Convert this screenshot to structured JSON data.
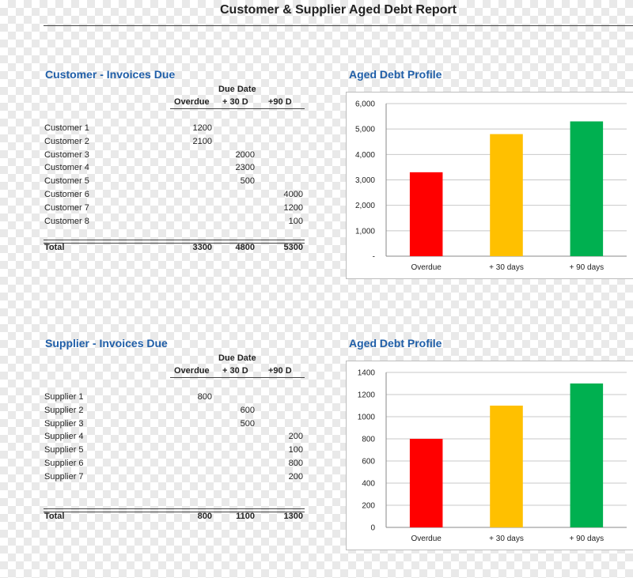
{
  "report_title": "Customer & Supplier Aged Debt Report",
  "customer": {
    "section_title": "Customer - Invoices Due",
    "due_date_label": "Due Date",
    "columns": [
      "Overdue",
      "+ 30 D",
      "+90 D"
    ],
    "rows": [
      {
        "label": "Customer 1",
        "values": [
          "1200",
          "",
          ""
        ]
      },
      {
        "label": "Customer 2",
        "values": [
          "2100",
          "",
          ""
        ]
      },
      {
        "label": "Customer 3",
        "values": [
          "",
          "2000",
          ""
        ]
      },
      {
        "label": "Customer 4",
        "values": [
          "",
          "2300",
          ""
        ]
      },
      {
        "label": "Customer 5",
        "values": [
          "",
          "500",
          ""
        ]
      },
      {
        "label": "Customer 6",
        "values": [
          "",
          "",
          "4000"
        ]
      },
      {
        "label": "Customer 7",
        "values": [
          "",
          "",
          "1200"
        ]
      },
      {
        "label": "Customer 8",
        "values": [
          "",
          "",
          "100"
        ]
      }
    ],
    "total_label": "Total",
    "totals": [
      "3300",
      "4800",
      "5300"
    ]
  },
  "supplier": {
    "section_title": "Supplier - Invoices Due",
    "due_date_label": "Due Date",
    "columns": [
      "Overdue",
      "+ 30 D",
      "+90 D"
    ],
    "rows": [
      {
        "label": "Supplier 1",
        "values": [
          "800",
          "",
          ""
        ]
      },
      {
        "label": "Supplier 2",
        "values": [
          "",
          "600",
          ""
        ]
      },
      {
        "label": "Supplier 3",
        "values": [
          "",
          "500",
          ""
        ]
      },
      {
        "label": "Supplier 4",
        "values": [
          "",
          "",
          "200"
        ]
      },
      {
        "label": "Supplier 5",
        "values": [
          "",
          "",
          "100"
        ]
      },
      {
        "label": "Supplier 6",
        "values": [
          "",
          "",
          "800"
        ]
      },
      {
        "label": "Supplier 7",
        "values": [
          "",
          "",
          "200"
        ]
      }
    ],
    "total_label": "Total",
    "totals": [
      "800",
      "1100",
      "1300"
    ]
  },
  "chart_titles": [
    "Aged Debt Profile",
    "Aged Debt Profile"
  ],
  "chart_data": [
    {
      "type": "bar",
      "title": "",
      "categories": [
        "Overdue",
        "+ 30 days",
        "+ 90 days"
      ],
      "values": [
        3300,
        4800,
        5300
      ],
      "colors": [
        "#ff0000",
        "#ffc000",
        "#00b050"
      ],
      "ylim": [
        0,
        6000
      ],
      "yticks": [
        0,
        1000,
        2000,
        3000,
        4000,
        5000,
        6000
      ],
      "ytick_labels": [
        "-",
        "1,000",
        "2,000",
        "3,000",
        "4,000",
        "5,000",
        "6,000"
      ],
      "grid": true,
      "xlabel": "",
      "ylabel": ""
    },
    {
      "type": "bar",
      "title": "",
      "categories": [
        "Overdue",
        "+ 30 days",
        "+ 90 days"
      ],
      "values": [
        800,
        1100,
        1300
      ],
      "colors": [
        "#ff0000",
        "#ffc000",
        "#00b050"
      ],
      "ylim": [
        0,
        1400
      ],
      "yticks": [
        0,
        200,
        400,
        600,
        800,
        1000,
        1200,
        1400
      ],
      "ytick_labels": [
        "0",
        "200",
        "400",
        "600",
        "800",
        "1000",
        "1200",
        "1400"
      ],
      "grid": true,
      "xlabel": "",
      "ylabel": ""
    }
  ]
}
